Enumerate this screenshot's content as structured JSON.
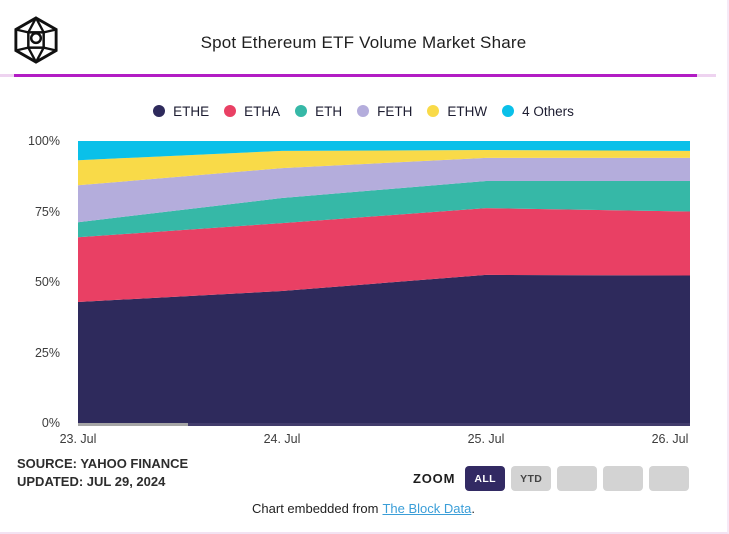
{
  "header": {
    "title": "Spot Ethereum ETF Volume Market Share",
    "logo_icon": "the-block-cube-logo"
  },
  "accent": {
    "divider": "#b21cc4",
    "divider_light": "#eed3f0",
    "link": "#3a9ed8",
    "zoom_active_bg": "#322a63",
    "zoom_inactive_bg": "#d3d3d3"
  },
  "chart_data": {
    "type": "area",
    "stacking": "percent",
    "title": "Spot Ethereum ETF Volume Market Share",
    "x": [
      "23. Jul",
      "24. Jul",
      "25. Jul",
      "26. Jul"
    ],
    "series": [
      {
        "name": "ETHE",
        "color": "#2e2a5c",
        "values": [
          42.9,
          46.8,
          52.5,
          52.3
        ]
      },
      {
        "name": "ETHA",
        "color": "#e94064",
        "values": [
          23.0,
          24.1,
          23.7,
          22.7
        ]
      },
      {
        "name": "ETH",
        "color": "#36b8a7",
        "values": [
          5.3,
          8.9,
          9.6,
          10.8
        ]
      },
      {
        "name": "FETH",
        "color": "#b4addc",
        "values": [
          13.1,
          10.6,
          8.2,
          8.2
        ]
      },
      {
        "name": "ETHW",
        "color": "#f9da48",
        "values": [
          8.9,
          6.1,
          2.8,
          2.5
        ]
      },
      {
        "name": "4 Others",
        "color": "#0ac0e9",
        "values": [
          6.8,
          3.5,
          3.2,
          3.5
        ]
      }
    ],
    "yticks": [
      "100%",
      "75%",
      "50%",
      "25%",
      "0%"
    ],
    "ylim": [
      0,
      100
    ],
    "grid": false,
    "legend_position": "top"
  },
  "footer": {
    "source_line1": "SOURCE: YAHOO FINANCE",
    "source_line2": "UPDATED: JUL 29, 2024",
    "zoom_label": "ZOOM",
    "zoom_buttons": [
      {
        "label": "ALL",
        "active": true
      },
      {
        "label": "YTD",
        "active": false
      },
      {
        "label": "",
        "active": false
      },
      {
        "label": "",
        "active": false
      },
      {
        "label": "",
        "active": false
      }
    ],
    "embed_prefix": "Chart embedded from",
    "embed_link": "The Block Data",
    "embed_suffix": "."
  }
}
